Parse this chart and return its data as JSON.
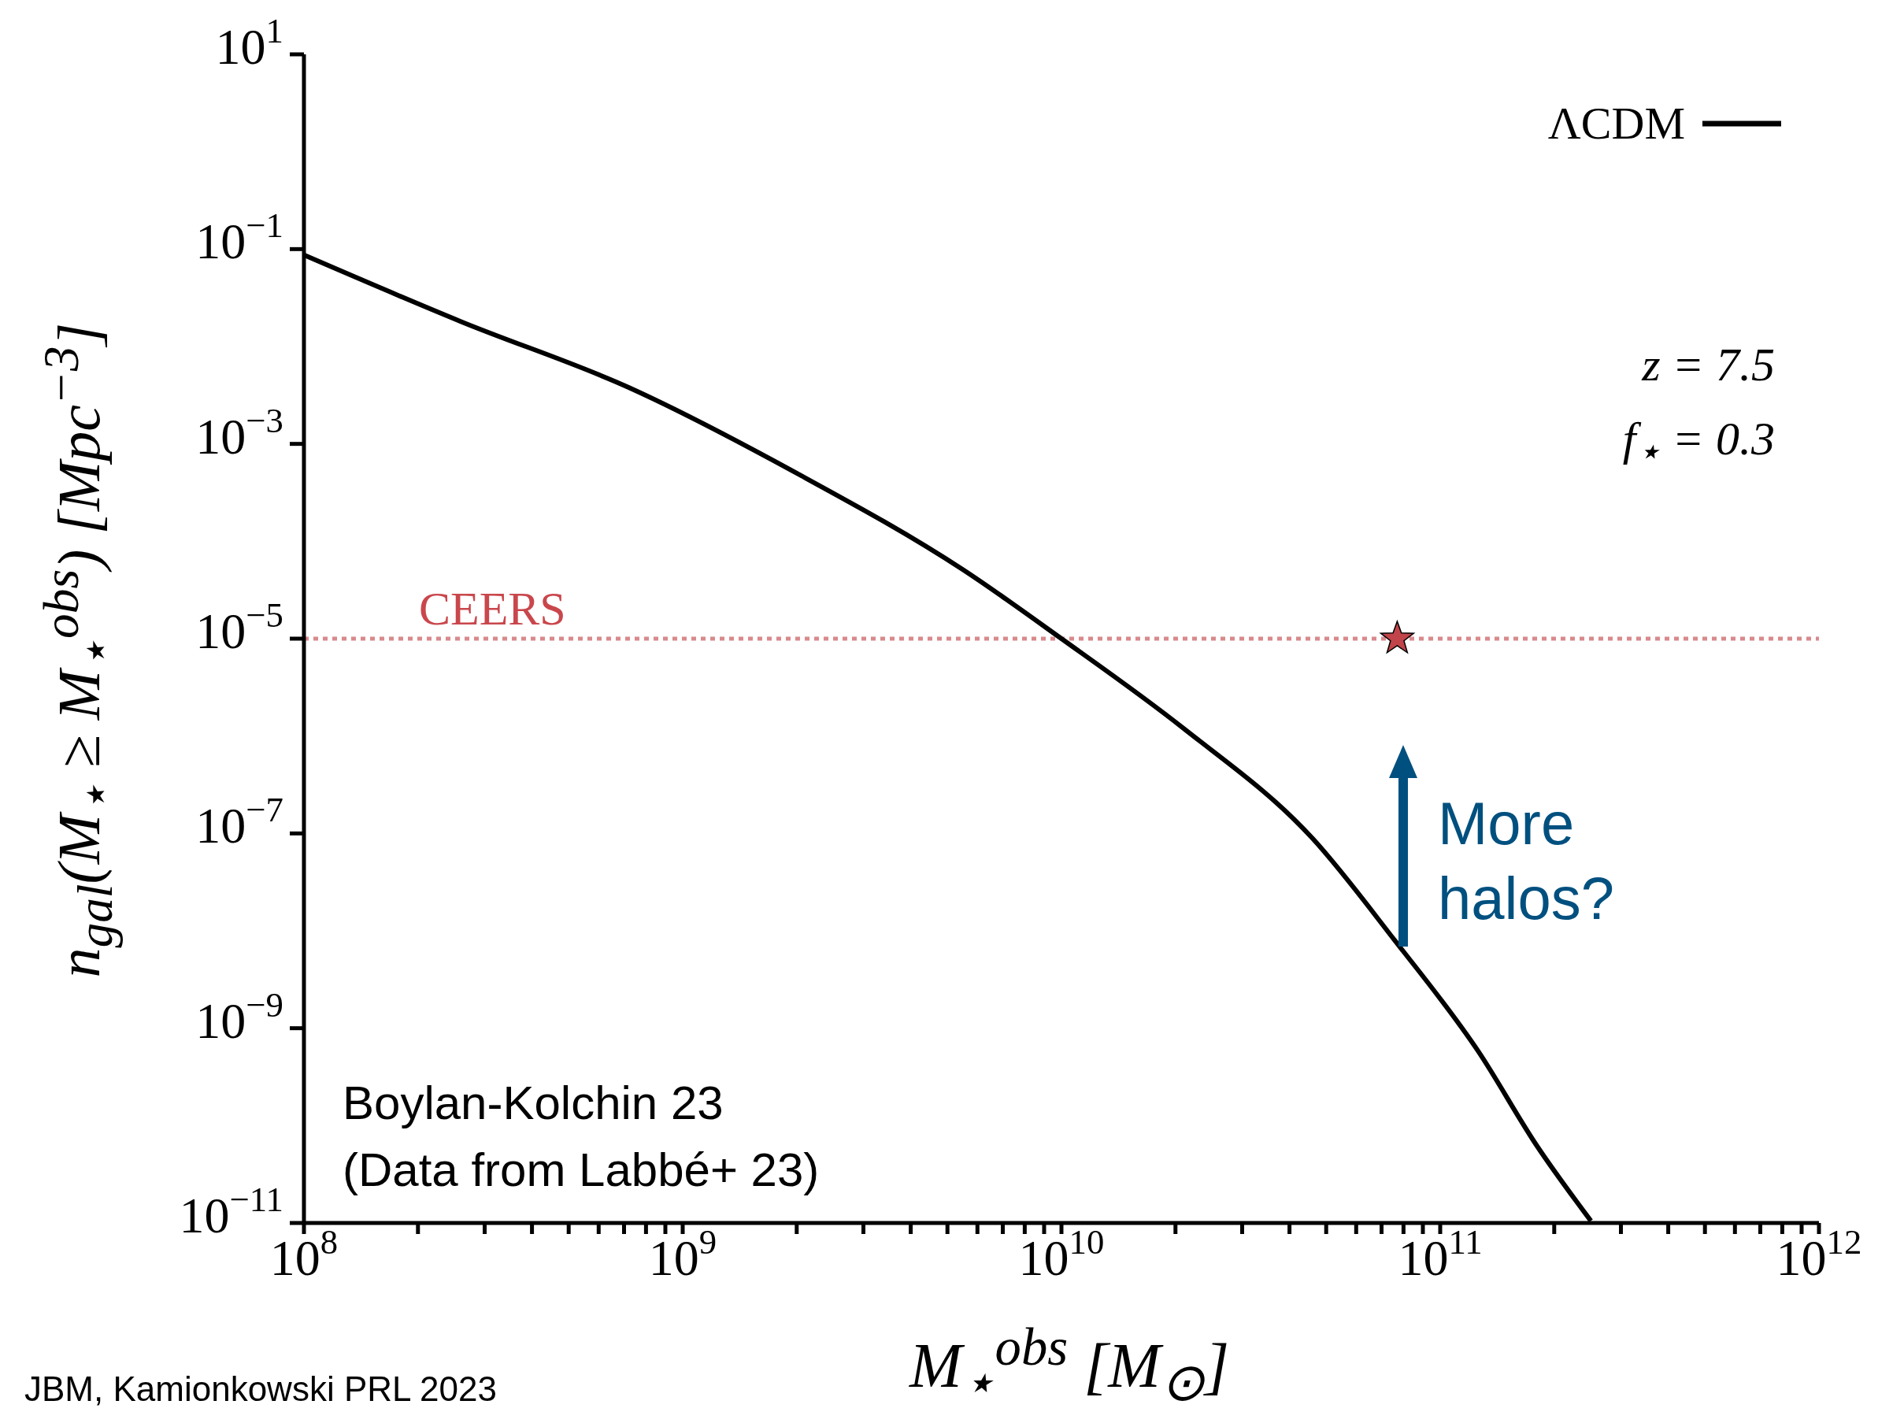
{
  "chart_data": {
    "type": "line",
    "xlabel": "M$_{⋆}$$^{obs}$ [M$_{⊙}$]",
    "ylabel": "n$_{gal}$(M$_{⋆}$ ≥ M$_{⋆}$$^{obs}$) [Mpc$^{−3}$]",
    "log": "xy",
    "grid": false,
    "legend": "top right",
    "xlim": [
      100000000.0,
      1000000000000.0
    ],
    "ylim": [
      1e-11,
      10
    ],
    "xticks": [
      {
        "value": 100000000.0,
        "label": "10$^{8}$"
      },
      {
        "value": 200000000.0,
        "label": null
      },
      {
        "value": 300000000.0,
        "label": null
      },
      {
        "value": 400000000.0,
        "label": null
      },
      {
        "value": 500000000.0,
        "label": null
      },
      {
        "value": 600000000.0,
        "label": null
      },
      {
        "value": 700000000.0,
        "label": null
      },
      {
        "value": 800000000.0,
        "label": null
      },
      {
        "value": 900000000.0,
        "label": null
      },
      {
        "value": 1000000000.0,
        "label": "10$^{9}$"
      },
      {
        "value": 2000000000.0,
        "label": null
      },
      {
        "value": 3000000000.0,
        "label": null
      },
      {
        "value": 4000000000.0,
        "label": null
      },
      {
        "value": 5000000000.0,
        "label": null
      },
      {
        "value": 6000000000.0,
        "label": null
      },
      {
        "value": 7000000000.0,
        "label": null
      },
      {
        "value": 8000000000.0,
        "label": null
      },
      {
        "value": 9000000000.0,
        "label": null
      },
      {
        "value": 10000000000.0,
        "label": "10$^{10}$"
      },
      {
        "value": 20000000000.0,
        "label": null
      },
      {
        "value": 30000000000.0,
        "label": null
      },
      {
        "value": 40000000000.0,
        "label": null
      },
      {
        "value": 50000000000.0,
        "label": null
      },
      {
        "value": 60000000000.0,
        "label": null
      },
      {
        "value": 70000000000.0,
        "label": null
      },
      {
        "value": 80000000000.0,
        "label": null
      },
      {
        "value": 90000000000.0,
        "label": null
      },
      {
        "value": 100000000000.0,
        "label": "10$^{11}$"
      },
      {
        "value": 200000000000.0,
        "label": null
      },
      {
        "value": 300000000000.0,
        "label": null
      },
      {
        "value": 400000000000.0,
        "label": null
      },
      {
        "value": 500000000000.0,
        "label": null
      },
      {
        "value": 600000000000.0,
        "label": null
      },
      {
        "value": 700000000000.0,
        "label": null
      },
      {
        "value": 800000000000.0,
        "label": null
      },
      {
        "value": 900000000000.0,
        "label": null
      },
      {
        "value": 1000000000000.0,
        "label": "10$^{12}$"
      }
    ],
    "yticks": [
      {
        "value": 1e-11,
        "label": "10$^{−11}$"
      },
      {
        "value": 1e-09,
        "label": "10$^{−9}$"
      },
      {
        "value": 1e-07,
        "label": "10$^{−7}$"
      },
      {
        "value": 1e-05,
        "label": "10$^{−5}$"
      },
      {
        "value": 0.001,
        "label": "10$^{−3}$"
      },
      {
        "value": 0.1,
        "label": "10$^{−1}$"
      },
      {
        "value": 10,
        "label": "10$^{1}$"
      }
    ],
    "series": [
      {
        "name": "ΛCDM",
        "type": "line",
        "color": "#000000",
        "line_style": "solid",
        "marker": "none",
        "x": [
          100000000.0,
          260000000.0,
          720000000.0,
          2000000000.0,
          5500000000.0,
          10000000000.0,
          21000000000.0,
          46000000000.0,
          76000000000.0,
          126000000000.0,
          180000000000.0,
          250000000000.0
        ],
        "values": [
          0.087,
          0.018,
          0.0038,
          0.0005,
          5.1e-05,
          1e-05,
          1.2e-06,
          8.9e-08,
          7.9e-09,
          5.8e-10,
          6.2e-11,
          1.05e-11
        ]
      },
      {
        "type": "scatter",
        "color": "#c0444a",
        "marker": "star",
        "x": [
          77000000000.0
        ],
        "values": [
          1e-05
        ]
      }
    ],
    "ref_lines": [
      {
        "axis": "y",
        "value": 1e-05,
        "label": "CEERS",
        "color": "#d88a8c",
        "line_style": "dotted"
      }
    ],
    "annotations": [
      "z = 7.5",
      "f$_{⋆}$ = 0.3",
      "More halos?",
      "Boylan-Kolchin 23",
      "(Data from Labbé+ 23)",
      "JBM, Kamionkowski PRL 2023"
    ]
  }
}
